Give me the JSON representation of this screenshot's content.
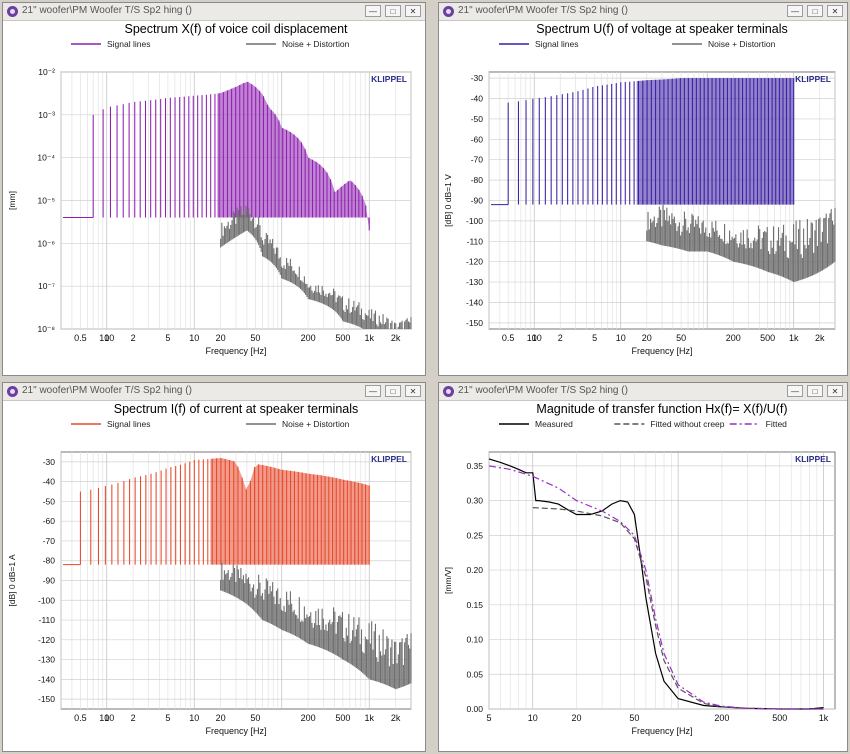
{
  "windows": [
    {
      "title": "21\" woofer\\PM Woofer T/S Sp2 hing ()",
      "chart_data": {
        "type": "line",
        "title": "Spectrum X(f) of voice coil displacement",
        "xlabel": "Frequency [Hz]",
        "ylabel": "[mm]",
        "xscale": "log",
        "yscale": "log",
        "xlim": [
          0.3,
          3000
        ],
        "ylim": [
          1e-08,
          0.01
        ],
        "xticks": [
          "0.5",
          "1",
          "2",
          "5",
          "10",
          "20",
          "50",
          "100",
          "200",
          "500",
          "1k",
          "2k"
        ],
        "yticks": [
          "10⁻²",
          "10⁻³",
          "10⁻⁴",
          "10⁻⁵",
          "10⁻⁶",
          "10⁻⁷",
          "10⁻⁸"
        ],
        "legend": [
          "Signal lines",
          "Noise + Distortion"
        ],
        "brand": "KLIPPEL",
        "grid": true,
        "series": [
          {
            "name": "Signal lines",
            "color": "#8e1fb0",
            "style": "lines",
            "floor": 4e-06,
            "x": [
              0.7,
              1,
              2,
              5,
              10,
              20,
              30,
              40,
              50,
              70,
              100,
              200,
              400,
              600,
              800,
              1000
            ],
            "values": [
              0.001,
              0.0015,
              0.002,
              0.0025,
              0.0028,
              0.0032,
              0.0045,
              0.006,
              0.0045,
              0.0015,
              0.0005,
              0.0001,
              1.5e-05,
              3e-05,
              1.5e-05,
              2e-06
            ]
          },
          {
            "name": "Noise + Distortion",
            "color": "#6e6e6e",
            "style": "band",
            "x": [
              20,
              40,
              60,
              100,
              200,
              500,
              1000,
              2000,
              3000
            ],
            "values": [
              3e-06,
              1e-05,
              2e-06,
              6e-07,
              1.5e-07,
              6e-08,
              3e-08,
              1.5e-08,
              2e-08
            ],
            "lower": [
              8e-07,
              2e-06,
              5e-07,
              1.5e-07,
              5e-08,
              1.5e-08,
              8e-09,
              6e-09,
              8e-09
            ]
          }
        ]
      }
    },
    {
      "title": "21\" woofer\\PM Woofer T/S Sp2 hing ()",
      "chart_data": {
        "type": "line",
        "title": "Spectrum U(f) of voltage at speaker terminals",
        "xlabel": "Frequency [Hz]",
        "ylabel": "[dB] 0 dB=1 V",
        "xscale": "log",
        "yscale": "linear",
        "xlim": [
          0.3,
          3000
        ],
        "ylim": [
          -153,
          -27
        ],
        "xticks": [
          "0.5",
          "1",
          "2",
          "5",
          "10",
          "20",
          "50",
          "100",
          "200",
          "500",
          "1k",
          "2k"
        ],
        "yticks": [
          "-30",
          "-40",
          "-50",
          "-60",
          "-70",
          "-80",
          "-90",
          "-100",
          "-110",
          "-120",
          "-130",
          "-140",
          "-150"
        ],
        "legend": [
          "Signal lines",
          "Noise + Distortion"
        ],
        "brand": "KLIPPEL",
        "grid": true,
        "series": [
          {
            "name": "Signal lines",
            "color": "#3b1fa3",
            "style": "lines",
            "floor": -92,
            "x": [
              0.5,
              1,
              2,
              5,
              10,
              20,
              50,
              100,
              200,
              500,
              1000
            ],
            "values": [
              -42,
              -40,
              -38,
              -34,
              -32,
              -31,
              -30,
              -30,
              -30,
              -30,
              -30
            ]
          },
          {
            "name": "Noise + Distortion",
            "color": "#6e6e6e",
            "style": "band",
            "x": [
              20,
              30,
              60,
              100,
              200,
              500,
              1000,
              2000,
              3000
            ],
            "values": [
              -95,
              -92,
              -96,
              -98,
              -100,
              -102,
              -100,
              -95,
              -92
            ],
            "lower": [
              -110,
              -112,
              -115,
              -115,
              -120,
              -125,
              -130,
              -125,
              -120
            ]
          }
        ]
      }
    },
    {
      "title": "21\" woofer\\PM Woofer T/S Sp2 hing ()",
      "chart_data": {
        "type": "line",
        "title": "Spectrum I(f) of current at speaker terminals",
        "xlabel": "Frequency [Hz]",
        "ylabel": "[dB] 0 dB=1 A",
        "xscale": "log",
        "yscale": "linear",
        "xlim": [
          0.3,
          3000
        ],
        "ylim": [
          -155,
          -25
        ],
        "xticks": [
          "0.5",
          "1",
          "2",
          "5",
          "10",
          "20",
          "50",
          "100",
          "200",
          "500",
          "1k",
          "2k"
        ],
        "yticks": [
          "-30",
          "-40",
          "-50",
          "-60",
          "-70",
          "-80",
          "-90",
          "-100",
          "-110",
          "-120",
          "-130",
          "-140",
          "-150"
        ],
        "legend": [
          "Signal lines",
          "Noise + Distortion"
        ],
        "brand": "KLIPPEL",
        "grid": true,
        "series": [
          {
            "name": "Signal lines",
            "color": "#e8482a",
            "style": "lines",
            "floor": -82,
            "x": [
              0.5,
              1,
              2,
              5,
              10,
              20,
              30,
              40,
              50,
              100,
              200,
              500,
              1000
            ],
            "values": [
              -45,
              -42,
              -38,
              -33,
              -29,
              -28,
              -30,
              -45,
              -31,
              -34,
              -36,
              -39,
              -42
            ]
          },
          {
            "name": "Noise + Distortion",
            "color": "#6e6e6e",
            "style": "band",
            "x": [
              20,
              40,
              60,
              100,
              200,
              500,
              1000,
              2000,
              3000
            ],
            "values": [
              -80,
              -84,
              -88,
              -92,
              -98,
              -105,
              -110,
              -118,
              -115
            ],
            "lower": [
              -95,
              -102,
              -110,
              -115,
              -122,
              -130,
              -140,
              -145,
              -142
            ]
          }
        ]
      }
    },
    {
      "title": "21\" woofer\\PM Woofer T/S Sp2 hing ()",
      "chart_data": {
        "type": "line",
        "title": "Magnitude of transfer function Hx(f)= X(f)/U(f)",
        "xlabel": "Frequency [Hz]",
        "ylabel": "[mm/V]",
        "xscale": "log",
        "yscale": "linear",
        "xlim": [
          5,
          1200
        ],
        "ylim": [
          0,
          0.37
        ],
        "xticks": [
          "5",
          "10",
          "20",
          "50",
          "100",
          "200",
          "500",
          "1k"
        ],
        "yticks": [
          "0.35",
          "0.30",
          "0.25",
          "0.20",
          "0.15",
          "0.10",
          "0.05",
          "0.00"
        ],
        "legend": [
          "Measured",
          "Fitted without creep",
          "Fitted"
        ],
        "brand": "KLIPPEL",
        "grid": true,
        "series": [
          {
            "name": "Measured",
            "color": "#000000",
            "style": "line",
            "x": [
              5,
              6,
              7,
              8,
              9,
              10,
              10.5,
              11,
              13,
              15,
              18,
              20,
              25,
              30,
              35,
              40,
              45,
              50,
              55,
              60,
              70,
              80,
              100,
              150,
              200,
              300,
              500,
              800,
              1000
            ],
            "values": [
              0.36,
              0.355,
              0.35,
              0.345,
              0.34,
              0.34,
              0.3,
              0.3,
              0.298,
              0.295,
              0.285,
              0.28,
              0.28,
              0.285,
              0.295,
              0.3,
              0.298,
              0.28,
              0.22,
              0.16,
              0.08,
              0.04,
              0.015,
              0.005,
              0.003,
              0.001,
              0.0,
              0.0,
              0.002
            ]
          },
          {
            "name": "Fitted without creep",
            "color": "#555555",
            "style": "dashed",
            "x": [
              10,
              15,
              20,
              30,
              40,
              50,
              60,
              70,
              80,
              100,
              150,
              200,
              300,
              500,
              1000
            ],
            "values": [
              0.29,
              0.288,
              0.285,
              0.278,
              0.268,
              0.245,
              0.19,
              0.12,
              0.07,
              0.03,
              0.008,
              0.003,
              0.001,
              0.0,
              0.0
            ]
          },
          {
            "name": "Fitted",
            "color": "#9a2ec4",
            "style": "dashdot",
            "x": [
              5,
              7,
              10,
              15,
              20,
              30,
              40,
              50,
              60,
              70,
              80,
              100,
              150,
              200,
              300,
              500,
              1000
            ],
            "values": [
              0.35,
              0.345,
              0.335,
              0.318,
              0.3,
              0.285,
              0.27,
              0.25,
              0.2,
              0.13,
              0.08,
              0.035,
              0.01,
              0.004,
              0.001,
              0.0,
              0.0
            ]
          }
        ]
      }
    }
  ]
}
